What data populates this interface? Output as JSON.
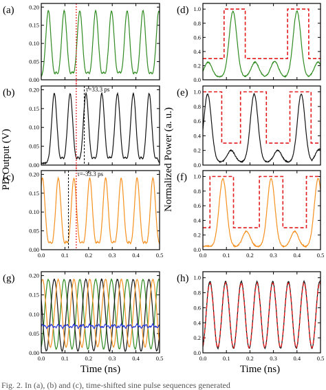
{
  "figure": {
    "ylabel_left": "PD Output (V)",
    "ylabel_right": "Normalized Power (a. u.)",
    "xlabel": "Time (ns)",
    "caption": "Fig. 2. In (a), (b) and (c), time-shifted sine pulse sequences generated"
  },
  "colors": {
    "green": "#2e8b1f",
    "black": "#111111",
    "orange": "#f5901e",
    "blue": "#2a3ad6",
    "red_dashed": "#e31a1c",
    "red_dotted": "#e31a1c"
  },
  "chart_data": [
    {
      "panel": "(a)",
      "type": "line",
      "xlim": [
        0,
        0.5
      ],
      "ylim": [
        0,
        0.21
      ],
      "yticks": [
        "0.00",
        "0.05",
        "0.10",
        "0.15",
        "0.20"
      ],
      "xticks": [
        "0.0",
        "0.1",
        "0.2",
        "0.3",
        "0.4",
        "0.5"
      ],
      "series": [
        {
          "color": "green",
          "kind": "pulse",
          "period": 0.0667,
          "peak_positions": [
            0.03,
            0.097,
            0.163,
            0.23,
            0.297,
            0.363,
            0.43,
            0.497
          ],
          "peak": 0.19,
          "baseline": 0.005
        }
      ],
      "annotations": [
        {
          "kind": "red-dotted-vline",
          "x": 0.148
        }
      ]
    },
    {
      "panel": "(b)",
      "type": "line",
      "xlim": [
        0,
        0.5
      ],
      "ylim": [
        0,
        0.21
      ],
      "yticks": [
        "0.00",
        "0.05",
        "0.10",
        "0.15",
        "0.20"
      ],
      "xticks": [
        "0.0",
        "0.1",
        "0.2",
        "0.3",
        "0.4",
        "0.5"
      ],
      "series": [
        {
          "color": "black",
          "kind": "pulse",
          "period": 0.0667,
          "peak_positions": [
            0.055,
            0.122,
            0.189,
            0.256,
            0.322,
            0.389,
            0.456
          ],
          "peak": 0.19,
          "baseline": 0.005
        }
      ],
      "annotations": [
        {
          "kind": "red-dotted-vline",
          "x": 0.148
        },
        {
          "kind": "black-dashed-vline",
          "x": 0.182
        },
        {
          "kind": "text",
          "text": "τ=33.3 ps"
        }
      ]
    },
    {
      "panel": "(c)",
      "type": "line",
      "xlim": [
        0,
        0.5
      ],
      "ylim": [
        0,
        0.21
      ],
      "yticks": [
        "0.00",
        "0.05",
        "0.10",
        "0.15",
        "0.20"
      ],
      "xticks": [
        "0.0",
        "0.1",
        "0.2",
        "0.3",
        "0.4",
        "0.5"
      ],
      "series": [
        {
          "color": "orange",
          "kind": "pulse",
          "period": 0.0667,
          "peak_positions": [
            0.005,
            0.072,
            0.138,
            0.205,
            0.272,
            0.338,
            0.405,
            0.472
          ],
          "peak": 0.19,
          "baseline": 0.005
        }
      ],
      "annotations": [
        {
          "kind": "red-dotted-vline",
          "x": 0.148
        },
        {
          "kind": "black-dashed-vline",
          "x": 0.115
        },
        {
          "kind": "text",
          "text": "τ=-33.3 ps"
        }
      ]
    },
    {
      "panel": "(g)",
      "type": "line",
      "xlim": [
        0,
        0.5
      ],
      "ylim": [
        0,
        0.21
      ],
      "yticks": [
        "0.00",
        "0.05",
        "0.10",
        "0.15",
        "0.20"
      ],
      "xticks": [
        "0.0",
        "0.1",
        "0.2",
        "0.3",
        "0.4",
        "0.5"
      ],
      "series": [
        {
          "color": "green",
          "kind": "sine",
          "period": 0.0667,
          "phase": 0.03,
          "max": 0.19,
          "min": 0.01
        },
        {
          "color": "black",
          "kind": "sine",
          "period": 0.0667,
          "phase": 0.055,
          "max": 0.19,
          "min": 0.005
        },
        {
          "color": "orange",
          "kind": "sine",
          "period": 0.0667,
          "phase": 0.005,
          "max": 0.19,
          "min": 0.015
        },
        {
          "color": "blue",
          "kind": "flat",
          "mean": 0.069,
          "min": 0.06,
          "max": 0.075
        }
      ],
      "annotations": []
    },
    {
      "panel": "(d)",
      "type": "line",
      "xlim": [
        0,
        0.5
      ],
      "ylim": [
        0,
        1.08
      ],
      "yticks": [
        "0.0",
        "0.2",
        "0.4",
        "0.6",
        "0.8",
        "1.0"
      ],
      "xticks": [
        "0.0",
        "0.1",
        "0.2",
        "0.3",
        "0.4",
        "0.5"
      ],
      "series": [
        {
          "color": "green",
          "kind": "peaks",
          "peaks": [
            [
              0.022,
              0.25
            ],
            [
              0.128,
              0.97
            ],
            [
              0.222,
              0.25
            ],
            [
              0.305,
              0.26
            ],
            [
              0.4,
              0.97
            ],
            [
              0.49,
              0.25
            ]
          ],
          "width": 0.023,
          "baseline": 0.04
        },
        {
          "color": "red_dashed",
          "kind": "step",
          "high": 1.0,
          "low": 0.3,
          "edges": [
            [
              0,
              0.3
            ],
            [
              0.09,
              0.3
            ],
            [
              0.09,
              1.0
            ],
            [
              0.18,
              1.0
            ],
            [
              0.18,
              0.3
            ],
            [
              0.36,
              0.3
            ],
            [
              0.36,
              1.0
            ],
            [
              0.45,
              1.0
            ],
            [
              0.45,
              0.3
            ],
            [
              0.5,
              0.3
            ]
          ]
        }
      ]
    },
    {
      "panel": "(e)",
      "type": "line",
      "xlim": [
        0,
        0.5
      ],
      "ylim": [
        0,
        1.08
      ],
      "yticks": [
        "0.0",
        "0.2",
        "0.4",
        "0.6",
        "0.8",
        "1.0"
      ],
      "xticks": [
        "0.0",
        "0.1",
        "0.2",
        "0.3",
        "0.4",
        "0.5"
      ],
      "series": [
        {
          "color": "black",
          "kind": "peaks",
          "peaks": [
            [
              0.02,
              0.97
            ],
            [
              0.12,
              0.2
            ],
            [
              0.218,
              0.97
            ],
            [
              0.318,
              0.2
            ],
            [
              0.418,
              0.97
            ],
            [
              0.495,
              0.22
            ]
          ],
          "width": 0.023,
          "baseline": 0.04
        },
        {
          "color": "red_dashed",
          "kind": "step",
          "high": 1.0,
          "low": 0.3,
          "edges": [
            [
              0,
              1.0
            ],
            [
              0.08,
              1.0
            ],
            [
              0.08,
              0.3
            ],
            [
              0.16,
              0.3
            ],
            [
              0.16,
              1.0
            ],
            [
              0.27,
              1.0
            ],
            [
              0.27,
              0.3
            ],
            [
              0.37,
              0.3
            ],
            [
              0.37,
              1.0
            ],
            [
              0.46,
              1.0
            ],
            [
              0.46,
              0.3
            ],
            [
              0.5,
              0.3
            ]
          ]
        }
      ]
    },
    {
      "panel": "(f)",
      "type": "line",
      "xlim": [
        0,
        0.5
      ],
      "ylim": [
        0,
        1.08
      ],
      "yticks": [
        "0.0",
        "0.2",
        "0.4",
        "0.6",
        "0.8",
        "1.0"
      ],
      "xticks": [
        "0.0",
        "0.1",
        "0.2",
        "0.3",
        "0.4",
        "0.5"
      ],
      "series": [
        {
          "color": "orange",
          "kind": "peaks",
          "peaks": [
            [
              0.085,
              0.97
            ],
            [
              0.185,
              0.25
            ],
            [
              0.29,
              0.97
            ],
            [
              0.39,
              0.25
            ],
            [
              0.49,
              0.97
            ],
            [
              0.02,
              0.05
            ]
          ],
          "width": 0.023,
          "baseline": 0.04
        },
        {
          "color": "red_dashed",
          "kind": "step",
          "high": 1.0,
          "low": 0.3,
          "edges": [
            [
              0,
              0.3
            ],
            [
              0.03,
              0.3
            ],
            [
              0.03,
              1.0
            ],
            [
              0.13,
              1.0
            ],
            [
              0.13,
              0.3
            ],
            [
              0.24,
              0.3
            ],
            [
              0.24,
              1.0
            ],
            [
              0.34,
              1.0
            ],
            [
              0.34,
              0.3
            ],
            [
              0.44,
              0.3
            ],
            [
              0.44,
              1.0
            ],
            [
              0.5,
              1.0
            ]
          ]
        }
      ]
    },
    {
      "panel": "(h)",
      "type": "line",
      "xlim": [
        0,
        0.5
      ],
      "ylim": [
        0,
        1.08
      ],
      "yticks": [
        "0.0",
        "0.2",
        "0.4",
        "0.6",
        "0.8",
        "1.0"
      ],
      "xticks": [
        "0.0",
        "0.1",
        "0.2",
        "0.3",
        "0.4",
        "0.5"
      ],
      "series": [
        {
          "color": "black",
          "kind": "sine",
          "period": 0.0667,
          "phase": 0.03,
          "max": 0.95,
          "min": 0.06
        },
        {
          "color": "red_dashed",
          "kind": "sine",
          "period": 0.0667,
          "phase": 0.03,
          "max": 0.93,
          "min": 0.07
        }
      ]
    }
  ]
}
